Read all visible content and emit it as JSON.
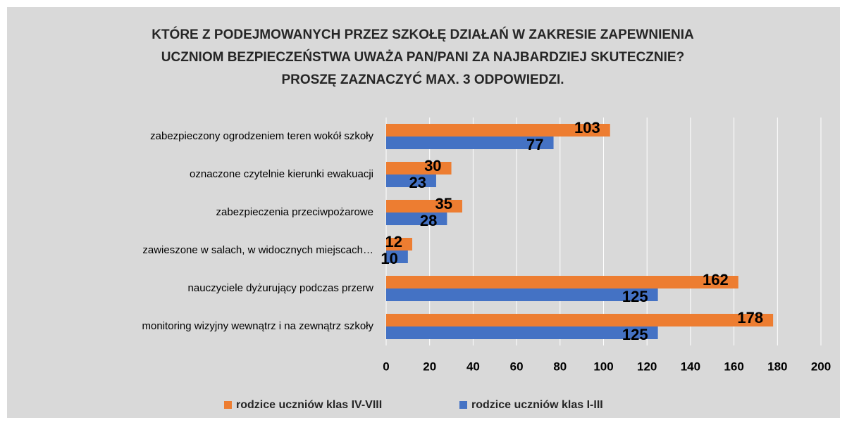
{
  "chart_data": {
    "type": "bar",
    "orientation": "horizontal",
    "title": [
      "KTÓRE Z PODEJMOWANYCH PRZEZ SZKOŁĘ DZIAŁAŃ W ZAKRESIE ZAPEWNIENIA",
      "UCZNIOM BEZPIECZEŃSTWA UWAŻA PAN/PANI ZA NAJBARDZIEJ SKUTECZNIE?",
      "PROSZĘ ZAZNACZYĆ MAX. 3 ODPOWIEDZI."
    ],
    "categories": [
      "zabezpieczony ogrodzeniem teren wokół szkoły",
      "oznaczone czytelnie kierunki ewakuacji",
      "zabezpieczenia przeciwpożarowe",
      "zawieszone w salach, w widocznych miejscach…",
      "nauczyciele dyżurujący podczas przerw",
      "monitoring wizyjny wewnątrz i na zewnątrz szkoły"
    ],
    "series": [
      {
        "name": "rodzice uczniów klas IV-VIII",
        "color": "#ed7d31",
        "values": [
          103,
          30,
          35,
          12,
          162,
          178
        ]
      },
      {
        "name": "rodzice uczniów klas I-III",
        "color": "#4472c4",
        "values": [
          77,
          23,
          28,
          10,
          125,
          125
        ]
      }
    ],
    "xlim": [
      0,
      200
    ],
    "xticks": [
      0,
      20,
      40,
      60,
      80,
      100,
      120,
      140,
      160,
      180,
      200
    ],
    "grid": true,
    "legend": "bottom"
  }
}
